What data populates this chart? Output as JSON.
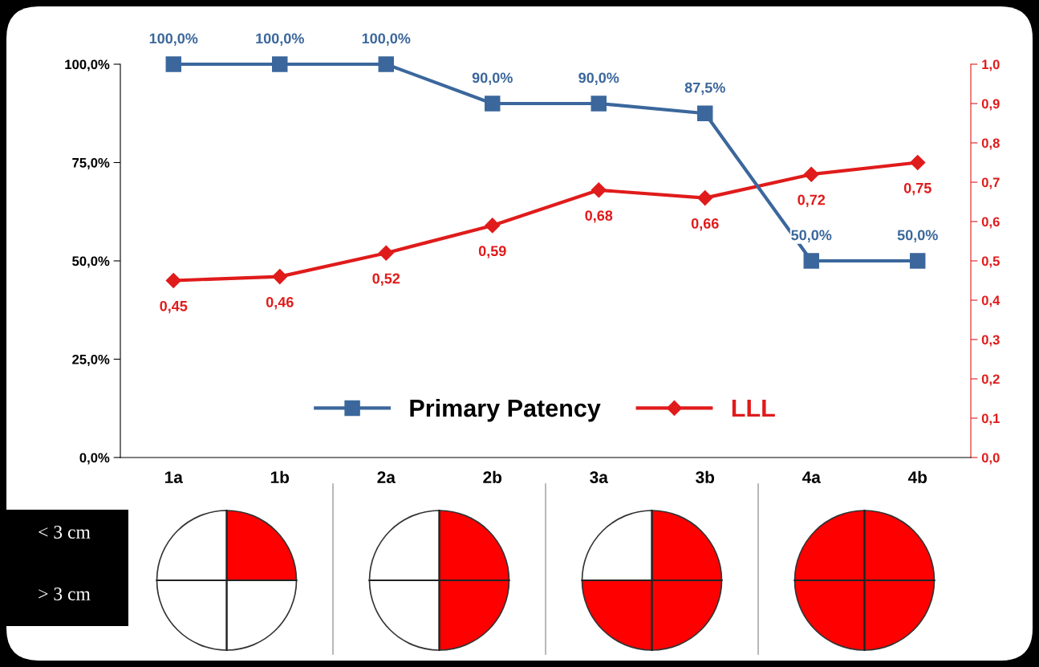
{
  "chart_data": {
    "type": "line",
    "categories": [
      "1a",
      "1b",
      "2a",
      "2b",
      "3a",
      "3b",
      "4a",
      "4b"
    ],
    "series": [
      {
        "name": "Primary Patency",
        "color": "#3b679c",
        "values": [
          100,
          100,
          100,
          90,
          90,
          87.5,
          50,
          50
        ],
        "value_labels": [
          "100,0%",
          "100,0%",
          "100,0%",
          "90,0%",
          "90,0%",
          "87,5%",
          "50,0%",
          "50,0%"
        ],
        "marker": "square"
      },
      {
        "name": "LLL",
        "color": "#e01b1b",
        "axis": "y2",
        "values": [
          0.45,
          0.46,
          0.52,
          0.59,
          0.68,
          0.66,
          0.72,
          0.75
        ],
        "value_labels": [
          "0,45",
          "0,46",
          "0,52",
          "0,59",
          "0,68",
          "0,66",
          "0,72",
          "0,75"
        ],
        "marker": "diamond"
      }
    ],
    "ylim": [
      0,
      100
    ],
    "yticks": [
      {
        "value": 0,
        "label": "0,0%"
      },
      {
        "value": 25,
        "label": "25,0%"
      },
      {
        "value": 50,
        "label": "50,0%"
      },
      {
        "value": 75,
        "label": "75,0%"
      },
      {
        "value": 100,
        "label": "100,0%"
      }
    ],
    "y2lim": [
      0,
      1
    ],
    "y2ticks": [
      {
        "value": 0,
        "label": "0,0"
      },
      {
        "value": 0.1,
        "label": "0,1"
      },
      {
        "value": 0.2,
        "label": "0,2"
      },
      {
        "value": 0.3,
        "label": "0,3"
      },
      {
        "value": 0.4,
        "label": "0,4"
      },
      {
        "value": 0.5,
        "label": "0,5"
      },
      {
        "value": 0.6,
        "label": "0,6"
      },
      {
        "value": 0.7,
        "label": "0,7"
      },
      {
        "value": 0.8,
        "label": "0,8"
      },
      {
        "value": 0.9,
        "label": "0,9"
      },
      {
        "value": 1,
        "label": "1,0"
      }
    ],
    "legend": "bottom",
    "grid": false,
    "line_style": "solid",
    "annotations": [
      "< 3 cm",
      "> 3 cm"
    ]
  }
}
